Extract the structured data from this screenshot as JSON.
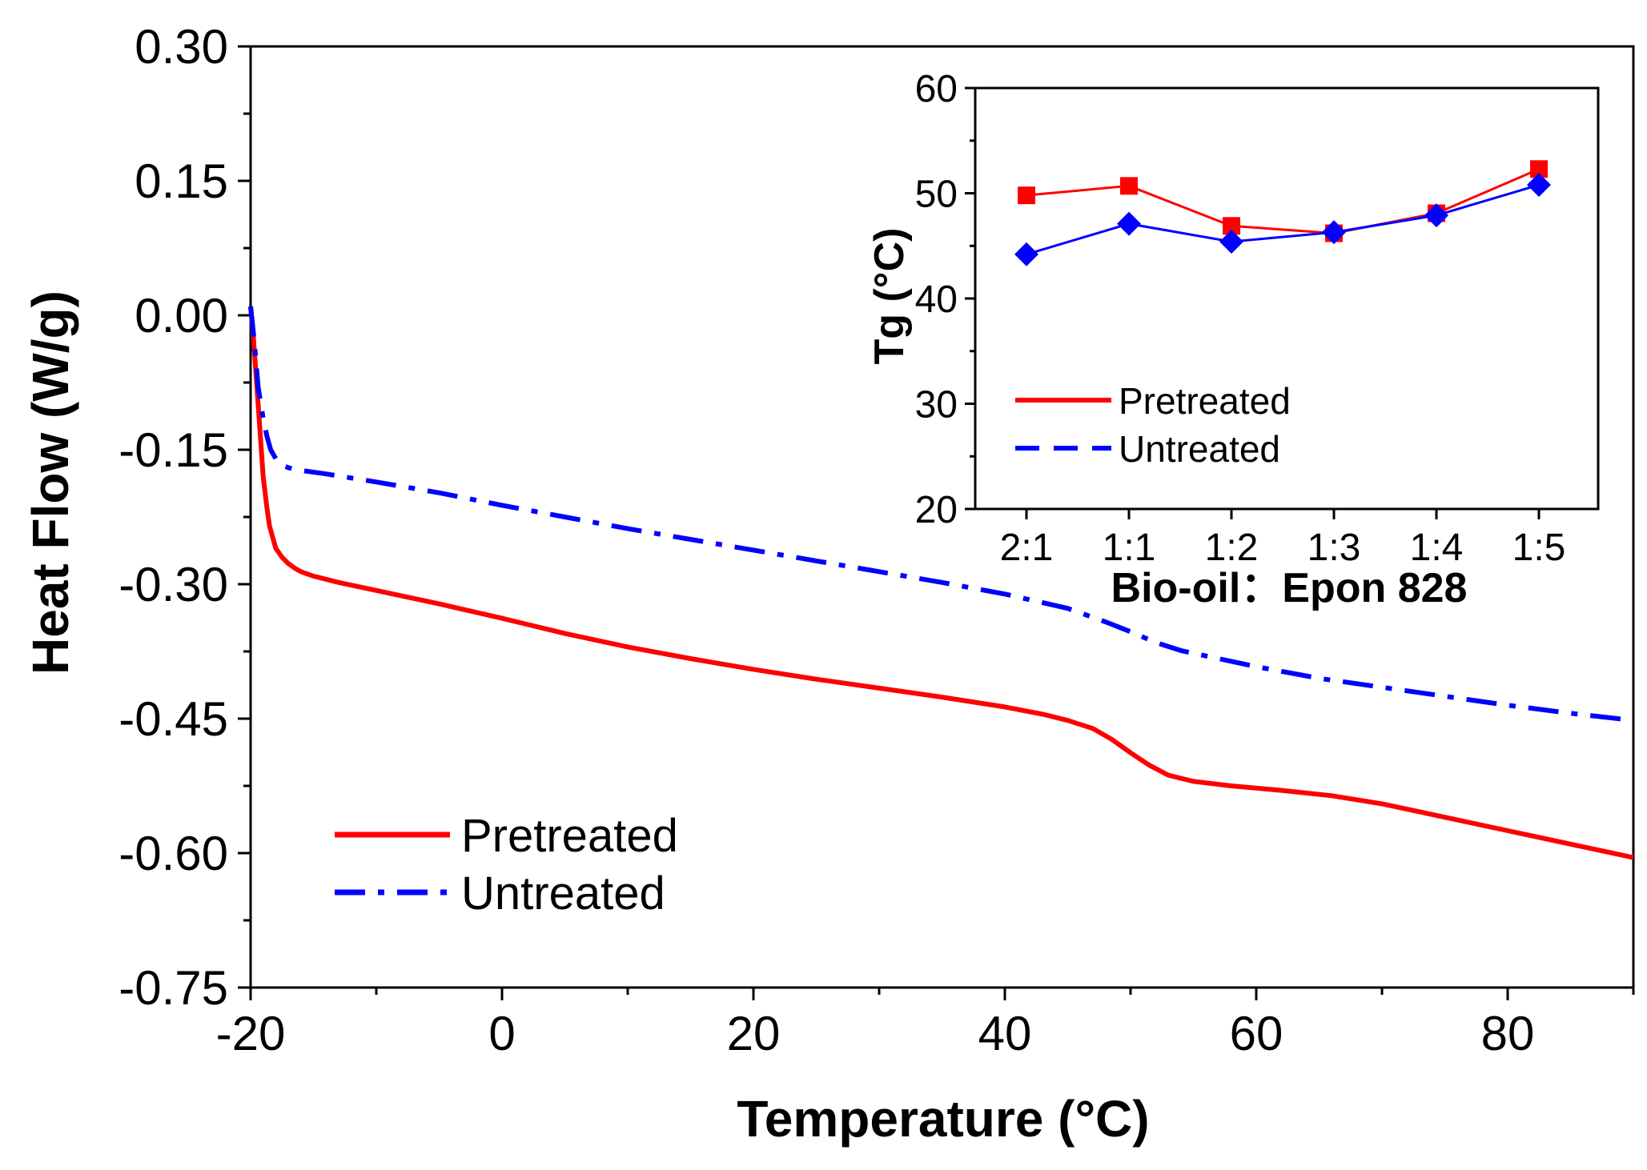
{
  "chart_data": [
    {
      "type": "line",
      "xlabel": "Temperature (°C)",
      "ylabel": "Heat Flow (W/g)",
      "xlim": [
        -20,
        90
      ],
      "ylim": [
        -0.75,
        0.3
      ],
      "x_ticks": [
        "-20",
        "0",
        "20",
        "40",
        "60",
        "80"
      ],
      "x_tick_values": [
        -20,
        0,
        20,
        40,
        60,
        80
      ],
      "y_ticks": [
        "0.30",
        "0.15",
        "0.00",
        "-0.15",
        "-0.30",
        "-0.45",
        "-0.60",
        "-0.75"
      ],
      "y_tick_values": [
        0.3,
        0.15,
        0.0,
        -0.15,
        -0.3,
        -0.45,
        -0.6,
        -0.75
      ],
      "legend_position": "bottom-left",
      "series": [
        {
          "name": "Pretreated",
          "color": "#ff0000",
          "style": "solid",
          "x": [
            -20,
            -19.8,
            -19.5,
            -19.2,
            -19.0,
            -18.7,
            -18.5,
            -18.2,
            -18.0,
            -17.5,
            -17.0,
            -16.5,
            -16.0,
            -15.0,
            -13.0,
            -10.0,
            -5.0,
            0.0,
            5.0,
            10.0,
            15.0,
            20.0,
            25.0,
            30.0,
            35.0,
            40.0,
            43.0,
            45.0,
            47.0,
            48.5,
            50.0,
            51.5,
            53.0,
            55.0,
            58.0,
            62.0,
            66.0,
            70.0,
            75.0,
            80.0,
            85.0,
            90.0
          ],
          "y": [
            0.01,
            -0.02,
            -0.08,
            -0.14,
            -0.18,
            -0.215,
            -0.235,
            -0.25,
            -0.26,
            -0.27,
            -0.277,
            -0.282,
            -0.286,
            -0.291,
            -0.298,
            -0.307,
            -0.322,
            -0.338,
            -0.355,
            -0.37,
            -0.383,
            -0.395,
            -0.406,
            -0.416,
            -0.426,
            -0.437,
            -0.445,
            -0.452,
            -0.461,
            -0.473,
            -0.488,
            -0.502,
            -0.513,
            -0.52,
            -0.525,
            -0.53,
            -0.536,
            -0.545,
            -0.56,
            -0.575,
            -0.59,
            -0.605
          ]
        },
        {
          "name": "Untreated",
          "color": "#0000ff",
          "style": "dashdot",
          "x": [
            -20,
            -19.7,
            -19.4,
            -19.0,
            -18.7,
            -18.4,
            -18.0,
            -17.5,
            -17.0,
            -16.0,
            -14.0,
            -10.0,
            -5.0,
            0.0,
            5.0,
            10.0,
            15.0,
            20.0,
            25.0,
            30.0,
            35.0,
            40.0,
            45.0,
            48.0,
            50.0,
            52.0,
            54.0,
            57.0,
            60.0,
            65.0,
            70.0,
            75.0,
            80.0,
            85.0,
            90.0
          ],
          "y": [
            0.01,
            -0.03,
            -0.08,
            -0.115,
            -0.135,
            -0.15,
            -0.16,
            -0.167,
            -0.17,
            -0.173,
            -0.177,
            -0.186,
            -0.198,
            -0.212,
            -0.225,
            -0.238,
            -0.25,
            -0.262,
            -0.274,
            -0.286,
            -0.298,
            -0.311,
            -0.327,
            -0.342,
            -0.353,
            -0.365,
            -0.374,
            -0.383,
            -0.392,
            -0.405,
            -0.415,
            -0.425,
            -0.435,
            -0.444,
            -0.452
          ]
        }
      ]
    },
    {
      "type": "line",
      "role": "inset",
      "xlabel": "Bio-oil：Epon 828",
      "ylabel": "Tg (°C)",
      "categories": [
        "2:1",
        "1:1",
        "1:2",
        "1:3",
        "1:4",
        "1:5"
      ],
      "ylim": [
        20,
        60
      ],
      "y_ticks": [
        "20",
        "30",
        "40",
        "50",
        "60"
      ],
      "y_tick_values": [
        20,
        30,
        40,
        50,
        60
      ],
      "legend_position": "center-left",
      "series": [
        {
          "name": "Pretreated",
          "color": "#ff0000",
          "style": "solid",
          "marker": "square",
          "values": [
            49.8,
            50.7,
            46.9,
            46.2,
            48.1,
            52.3
          ]
        },
        {
          "name": "Untreated",
          "color": "#0000ff",
          "style": "dashed",
          "marker": "diamond",
          "values": [
            44.2,
            47.1,
            45.4,
            46.3,
            47.9,
            50.8
          ]
        }
      ]
    }
  ]
}
